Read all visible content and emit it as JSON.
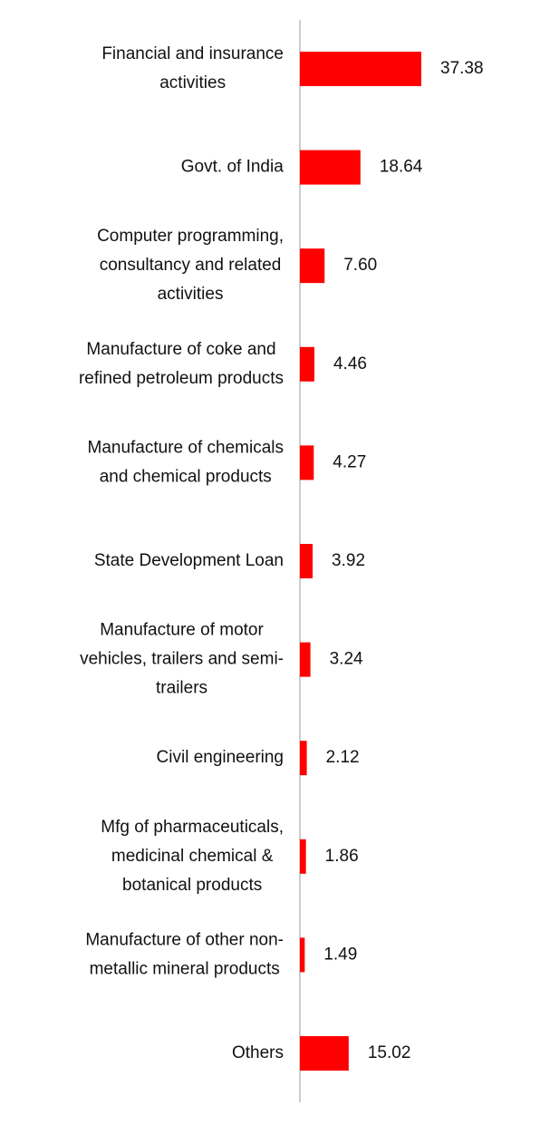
{
  "chart_data": {
    "type": "bar",
    "orientation": "horizontal",
    "categories": [
      "Financial and insurance activities",
      "Govt. of India",
      "Computer programming, consultancy and related activities",
      "Manufacture of coke and refined petroleum products",
      "Manufacture of chemicals and chemical products",
      "State Development Loan",
      "Manufacture of motor vehicles, trailers and semi-trailers",
      "Civil engineering",
      "Mfg of pharmaceuticals, medicinal chemical & botanical products",
      "Manufacture of other non-metallic mineral products",
      "Others"
    ],
    "category_lines": [
      [
        "Financial and insurance",
        "activities"
      ],
      [
        "Govt. of India"
      ],
      [
        "Computer programming,",
        "consultancy and related",
        "activities"
      ],
      [
        "Manufacture of coke and",
        "refined petroleum products"
      ],
      [
        "Manufacture of chemicals",
        "and chemical products"
      ],
      [
        "State Development Loan"
      ],
      [
        "Manufacture of motor",
        "vehicles, trailers and semi-",
        "trailers"
      ],
      [
        "Civil engineering"
      ],
      [
        "Mfg of pharmaceuticals,",
        "medicinal chemical &",
        "botanical products"
      ],
      [
        "Manufacture of other non-",
        "metallic mineral products"
      ],
      [
        "Others"
      ]
    ],
    "values": [
      37.38,
      18.64,
      7.6,
      4.46,
      4.27,
      3.92,
      3.24,
      2.12,
      1.86,
      1.49,
      15.02
    ],
    "value_labels": [
      "37.38",
      "18.64",
      "7.60",
      "4.46",
      "4.27",
      "3.92",
      "3.24",
      "2.12",
      "1.86",
      "1.49",
      "15.02"
    ],
    "title": "",
    "xlabel": "",
    "ylabel": "",
    "grid": false,
    "legend": "none",
    "bar_color": "#ff0000",
    "axis_color": "#cccccc"
  }
}
